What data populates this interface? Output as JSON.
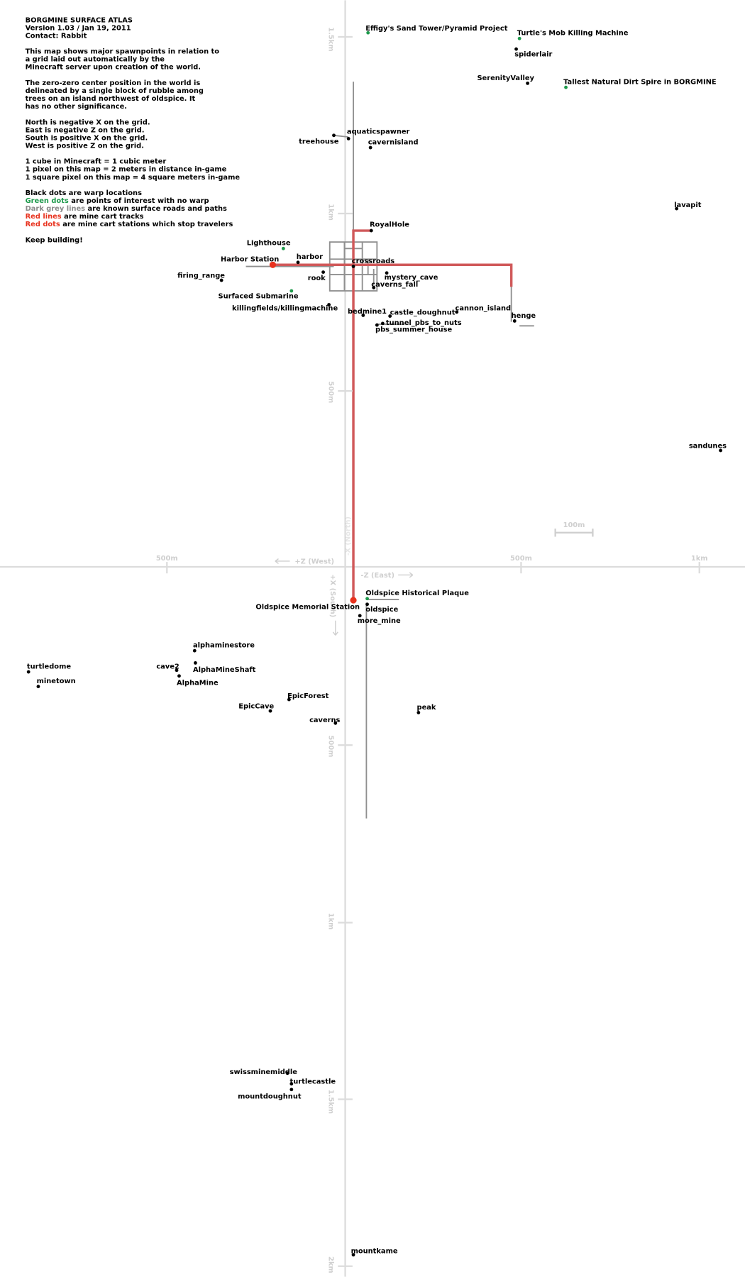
{
  "notes": {
    "title": "BORGMINE SURFACE ATLAS",
    "version": "Version 1.03 / Jan 19, 2011",
    "contact": "Contact: Rabbit",
    "paragraphs": [
      [
        "This map shows major spawnpoints in relation to",
        "a grid laid out automatically by the",
        "Minecraft server upon creation of the world."
      ],
      [
        "The zero-zero center position in the world is",
        "delineated by a single block of rubble among",
        "trees on an island northwest of oldspice. It",
        "has no other significance."
      ],
      [
        "North is negative X on the grid.",
        "East is negative Z on the grid.",
        "South is positive X on the grid.",
        "West is positive Z on the grid."
      ],
      [
        "1 cube in Minecraft = 1 cubic meter",
        "1 pixel on this map = 2 meters in distance in-game",
        "1 square pixel on this map = 4 square meters in-game"
      ]
    ],
    "legend_intro": "Black dots are warp locations",
    "legend": [
      {
        "key": "Green dots",
        "color": "#1e9a4c",
        "text": "are points of interest with no warp"
      },
      {
        "key": "Dark grey lines",
        "color": "#8a8a8a",
        "text": "are known surface roads and paths"
      },
      {
        "key": "Red lines",
        "color": "#e8321e",
        "text": "are mine cart tracks"
      },
      {
        "key": "Red dots",
        "color": "#e8321e",
        "text": "are mine cart stations which stop travelers"
      }
    ],
    "closing": "Keep building!"
  },
  "axes": {
    "vertical_labels": [
      "1.5km",
      "1km",
      "500m",
      "500m",
      "1km",
      "1.5km",
      "2km"
    ],
    "horizontal_labels": [
      "500m",
      "500m",
      "1km"
    ],
    "west": "+Z (West)",
    "east": "-Z (East)",
    "south": "+X (South)",
    "north": "-X (North)",
    "scale_bar": "100m"
  },
  "locations": [
    {
      "label": "Effigy's Sand Tower/Pyramid Project",
      "color": "#1e9a4c"
    },
    {
      "label": "Turtle's Mob Killing Machine",
      "color": "#1e9a4c"
    },
    {
      "label": "spiderlair",
      "color": "#000000"
    },
    {
      "label": "SerenityValley",
      "color": "#000000"
    },
    {
      "label": "Tallest Natural Dirt Spire in BORGMINE",
      "color": "#1e9a4c"
    },
    {
      "label": "aquaticspawner",
      "color": "#000000"
    },
    {
      "label": "treehouse",
      "color": "#000000"
    },
    {
      "label": "cavernisland",
      "color": "#000000"
    },
    {
      "label": "lavapit",
      "color": "#000000"
    },
    {
      "label": "RoyalHole",
      "color": "#000000"
    },
    {
      "label": "Lighthouse",
      "color": "#1e9a4c"
    },
    {
      "label": "Harbor Station",
      "color": "#e8321e"
    },
    {
      "label": "harbor",
      "color": "#000000"
    },
    {
      "label": "crossroads",
      "color": "#000000"
    },
    {
      "label": "firing_range",
      "color": "#000000"
    },
    {
      "label": "rook",
      "color": "#000000"
    },
    {
      "label": "mystery_cave",
      "color": "#000000"
    },
    {
      "label": "caverns_fall",
      "color": "#000000"
    },
    {
      "label": "Surfaced Submarine",
      "color": "#1e9a4c"
    },
    {
      "label": "killingfields/killingmachine",
      "color": "#000000"
    },
    {
      "label": "bedmine1",
      "color": "#000000"
    },
    {
      "label": "castle_doughnut",
      "color": "#000000"
    },
    {
      "label": "cannon_island",
      "color": "#000000"
    },
    {
      "label": "henge",
      "color": "#000000"
    },
    {
      "label": "tunnel_pbs_to_nuts",
      "color": "#000000"
    },
    {
      "label": "pbs_summer_house",
      "color": "#000000"
    },
    {
      "label": "sandunes",
      "color": "#000000"
    },
    {
      "label": "Oldspice Historical Plaque",
      "color": "#1e9a4c"
    },
    {
      "label": "Oldspice Memorial Station",
      "color": "#e8321e"
    },
    {
      "label": "oldspice",
      "color": "#000000"
    },
    {
      "label": "more_mine",
      "color": "#000000"
    },
    {
      "label": "alphaminestore",
      "color": "#000000"
    },
    {
      "label": "turtledome",
      "color": "#000000"
    },
    {
      "label": "cave2",
      "color": "#000000"
    },
    {
      "label": "AlphaMineShaft",
      "color": "#000000"
    },
    {
      "label": "AlphaMine",
      "color": "#000000"
    },
    {
      "label": "minetown",
      "color": "#000000"
    },
    {
      "label": "EpicForest",
      "color": "#000000"
    },
    {
      "label": "EpicCave",
      "color": "#000000"
    },
    {
      "label": "caverns",
      "color": "#000000"
    },
    {
      "label": "peak",
      "color": "#000000"
    },
    {
      "label": "swissminemiddle",
      "color": "#000000"
    },
    {
      "label": "turtlecastle",
      "color": "#000000"
    },
    {
      "label": "mountdoughnut",
      "color": "#000000"
    },
    {
      "label": "mountkame",
      "color": "#000000"
    }
  ]
}
